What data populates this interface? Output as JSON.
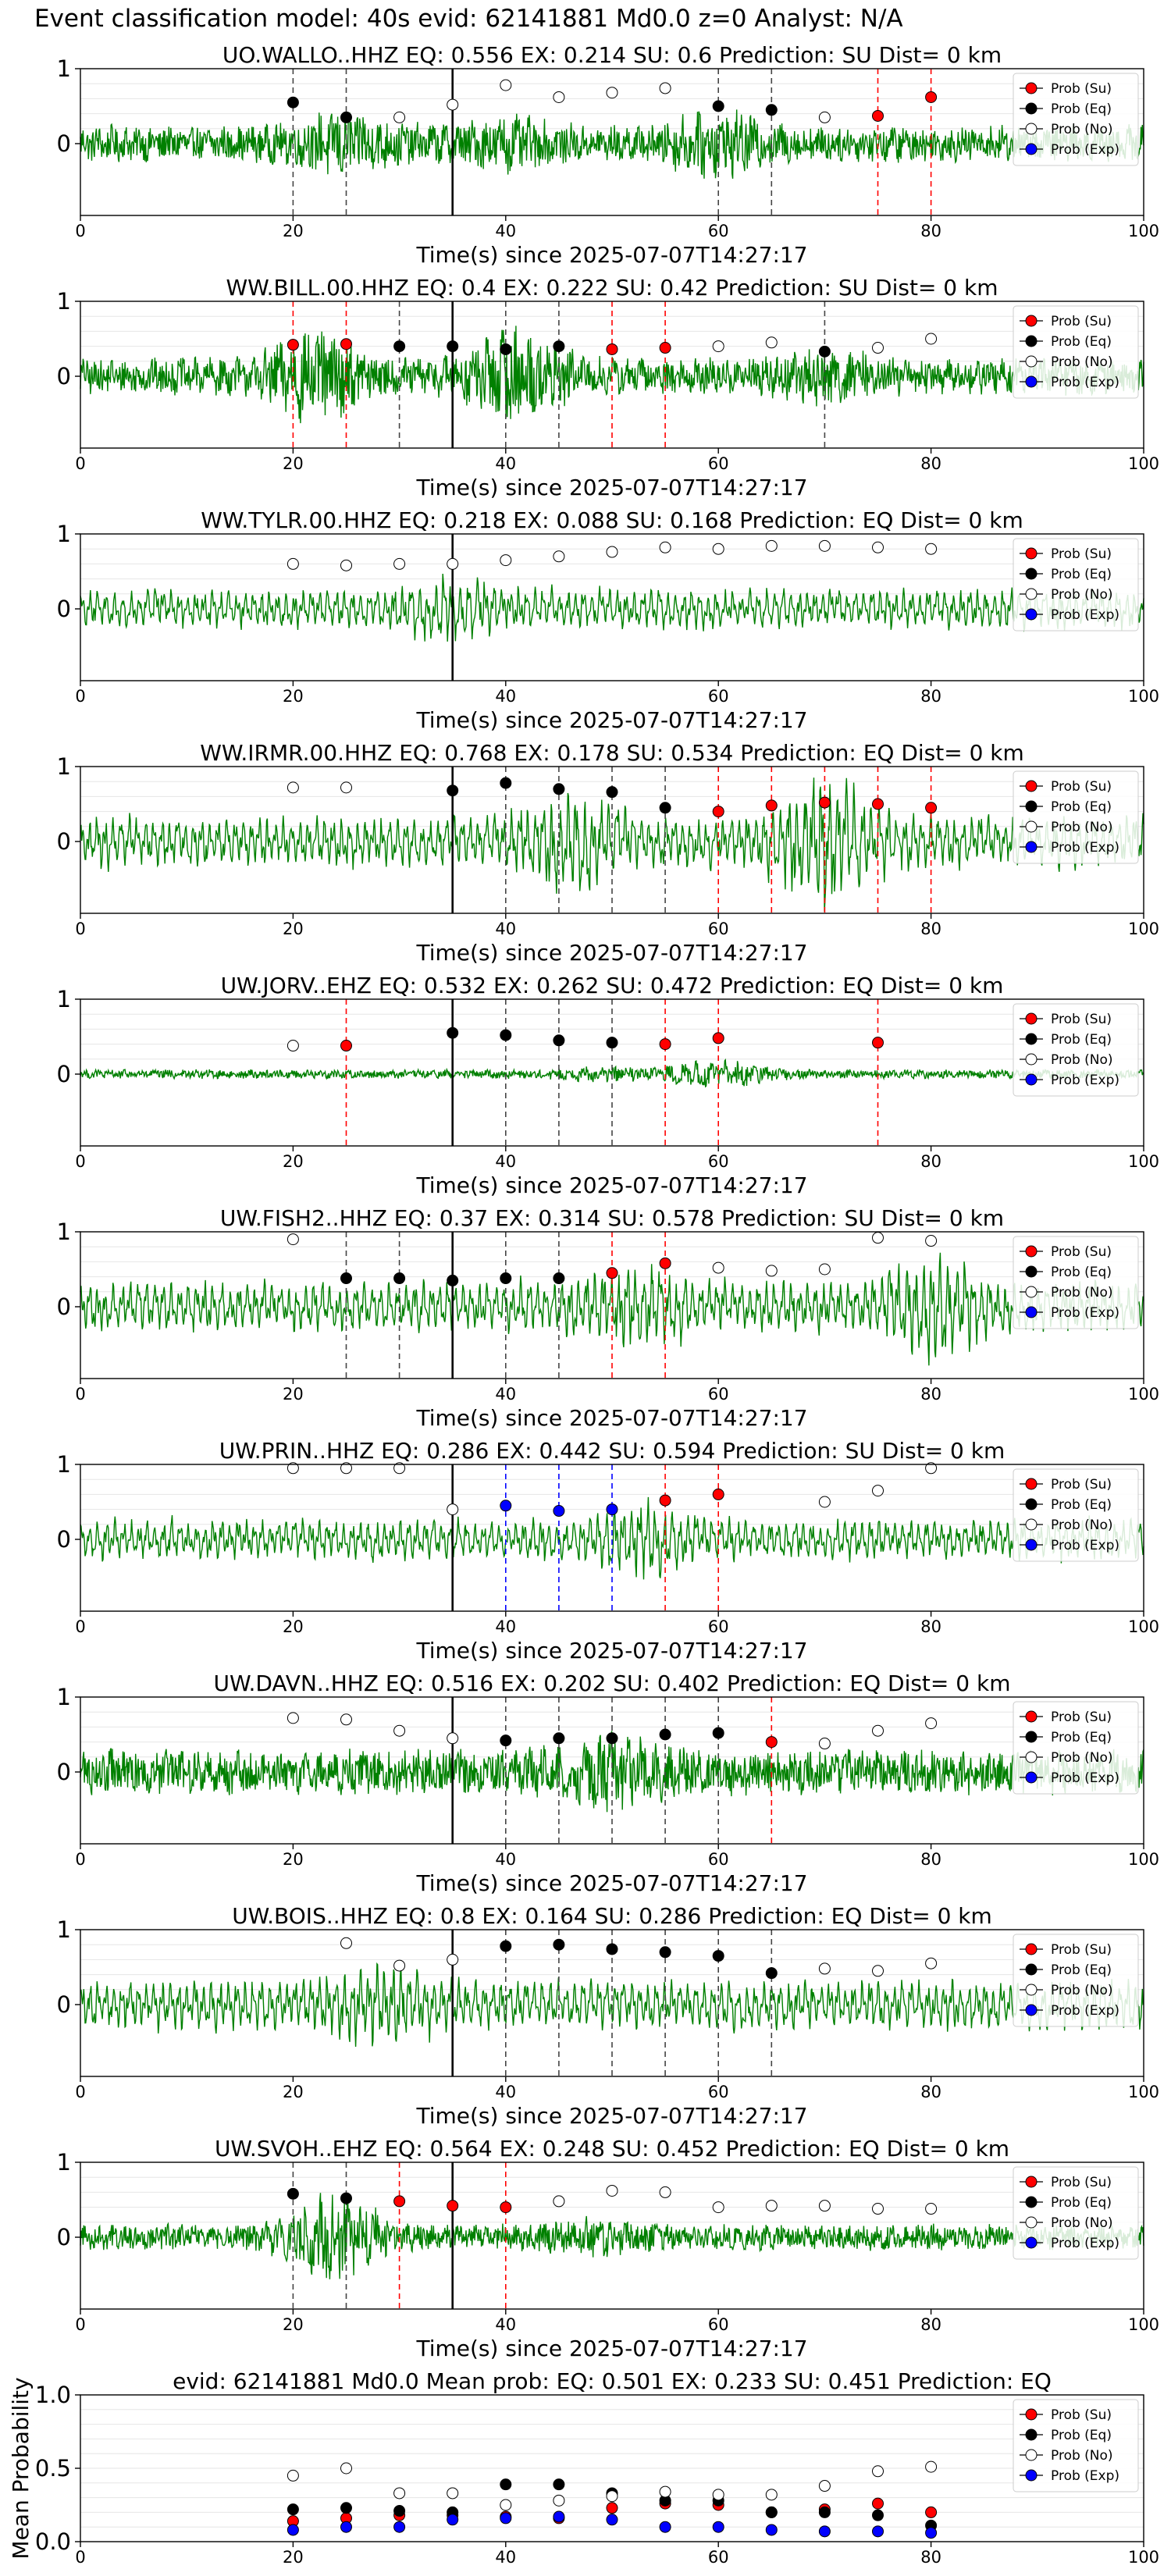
{
  "main_title": "Event classification model: 40s evid: 62141881 Md0.0 z=0 Analyst: N/A",
  "legend_labels": [
    "Prob (Su)",
    "Prob (Eq)",
    "Prob (No)",
    "Prob (Exp)"
  ],
  "colors": {
    "su": "#ff0000",
    "eq": "#000000",
    "no": "#ffffff",
    "exp": "#0000ff",
    "waveform": "#008000",
    "arrival_line": "#000000"
  },
  "chart_data": [
    {
      "type": "line",
      "title": "UO.WALLO..HHZ   EQ: 0.556  EX: 0.214  SU: 0.6   Prediction: SU    Dist= 0 km",
      "xlabel": "Time(s) since 2025-07-07T14:27:17",
      "xlim": [
        0,
        100
      ],
      "xticks": [
        0,
        20,
        40,
        60,
        80,
        100
      ],
      "yticks": [
        0,
        1
      ],
      "arrival_time": 35,
      "waveform": {
        "style": "broadband",
        "amplitude": "mixed"
      },
      "x": [
        20,
        25,
        30,
        35,
        40,
        45,
        50,
        55,
        60,
        65,
        70,
        75,
        80
      ],
      "probs": [
        0.55,
        0.35,
        0.35,
        0.52,
        0.78,
        0.62,
        0.68,
        0.74,
        0.5,
        0.45,
        0.35,
        0.37,
        0.62
      ],
      "classes": [
        "eq",
        "eq",
        "no",
        "no",
        "no",
        "no",
        "no",
        "no",
        "eq",
        "eq",
        "no",
        "su",
        "su"
      ]
    },
    {
      "type": "line",
      "title": "WW.BILL.00.HHZ   EQ: 0.4  EX: 0.222  SU: 0.42   Prediction: SU    Dist= 0 km",
      "xlabel": "Time(s) since 2025-07-07T14:27:17",
      "xlim": [
        0,
        100
      ],
      "xticks": [
        0,
        20,
        40,
        60,
        80,
        100
      ],
      "yticks": [
        0,
        1
      ],
      "arrival_time": 35,
      "waveform": {
        "style": "broadband",
        "amplitude": "mixed"
      },
      "x": [
        20,
        25,
        30,
        35,
        40,
        45,
        50,
        55,
        60,
        65,
        70,
        75,
        80
      ],
      "probs": [
        0.42,
        0.43,
        0.4,
        0.4,
        0.36,
        0.4,
        0.36,
        0.38,
        0.4,
        0.45,
        0.33,
        0.38,
        0.5
      ],
      "classes": [
        "su",
        "su",
        "eq",
        "eq",
        "eq",
        "eq",
        "su",
        "su",
        "no",
        "no",
        "eq",
        "no",
        "no"
      ]
    },
    {
      "type": "line",
      "title": "WW.TYLR.00.HHZ   EQ: 0.218  EX: 0.088  SU: 0.168   Prediction: EQ    Dist= 0 km",
      "xlabel": "Time(s) since 2025-07-07T14:27:17",
      "xlim": [
        0,
        100
      ],
      "xticks": [
        0,
        20,
        40,
        60,
        80,
        100
      ],
      "yticks": [
        0,
        1
      ],
      "arrival_time": 35,
      "waveform": {
        "style": "smooth",
        "amplitude": "medium"
      },
      "x": [
        20,
        25,
        30,
        35,
        40,
        45,
        50,
        55,
        60,
        65,
        70,
        75,
        80
      ],
      "probs": [
        0.6,
        0.58,
        0.6,
        0.6,
        0.65,
        0.7,
        0.76,
        0.82,
        0.8,
        0.84,
        0.84,
        0.82,
        0.8
      ],
      "classes": [
        "no",
        "no",
        "no",
        "no",
        "no",
        "no",
        "no",
        "no",
        "no",
        "no",
        "no",
        "no",
        "no"
      ]
    },
    {
      "type": "line",
      "title": "WW.IRMR.00.HHZ   EQ: 0.768  EX: 0.178  SU: 0.534   Prediction: EQ    Dist= 0 km",
      "xlabel": "Time(s) since 2025-07-07T14:27:17",
      "xlim": [
        0,
        100
      ],
      "xticks": [
        0,
        20,
        40,
        60,
        80,
        100
      ],
      "yticks": [
        0,
        1
      ],
      "arrival_time": 35,
      "waveform": {
        "style": "smooth",
        "amplitude": "high"
      },
      "x": [
        20,
        25,
        35,
        40,
        45,
        50,
        55,
        60,
        65,
        70,
        75,
        80
      ],
      "probs": [
        0.72,
        0.72,
        0.68,
        0.78,
        0.7,
        0.66,
        0.45,
        0.4,
        0.48,
        0.52,
        0.5,
        0.45
      ],
      "classes": [
        "no",
        "no",
        "eq",
        "eq",
        "eq",
        "eq",
        "eq",
        "su",
        "su",
        "su",
        "su",
        "su"
      ]
    },
    {
      "type": "line",
      "title": "UW.JORV..EHZ   EQ: 0.532  EX: 0.262  SU: 0.472   Prediction: EQ    Dist= 0 km",
      "xlabel": "Time(s) since 2025-07-07T14:27:17",
      "xlim": [
        0,
        100
      ],
      "xticks": [
        0,
        20,
        40,
        60,
        80,
        100
      ],
      "yticks": [
        0,
        1
      ],
      "arrival_time": 35,
      "waveform": {
        "style": "quiet-burst",
        "amplitude": "low"
      },
      "x": [
        20,
        25,
        35,
        40,
        45,
        50,
        55,
        60,
        75
      ],
      "probs": [
        0.38,
        0.38,
        0.55,
        0.52,
        0.45,
        0.42,
        0.4,
        0.48,
        0.42
      ],
      "classes": [
        "no",
        "su",
        "eq",
        "eq",
        "eq",
        "eq",
        "su",
        "su",
        "su"
      ]
    },
    {
      "type": "line",
      "title": "UW.FISH2..HHZ   EQ: 0.37  EX: 0.314  SU: 0.578   Prediction: SU    Dist= 0 km",
      "xlabel": "Time(s) since 2025-07-07T14:27:17",
      "xlim": [
        0,
        100
      ],
      "xticks": [
        0,
        20,
        40,
        60,
        80,
        100
      ],
      "yticks": [
        0,
        1
      ],
      "arrival_time": 35,
      "waveform": {
        "style": "smooth",
        "amplitude": "high"
      },
      "x": [
        20,
        25,
        30,
        35,
        40,
        45,
        50,
        55,
        60,
        65,
        70,
        75,
        80
      ],
      "probs": [
        0.9,
        0.38,
        0.38,
        0.35,
        0.38,
        0.38,
        0.45,
        0.58,
        0.52,
        0.48,
        0.5,
        0.92,
        0.88
      ],
      "classes": [
        "no",
        "eq",
        "eq",
        "eq",
        "eq",
        "eq",
        "su",
        "su",
        "no",
        "no",
        "no",
        "no",
        "no"
      ]
    },
    {
      "type": "line",
      "title": "UW.PRIN..HHZ   EQ: 0.286  EX: 0.442  SU: 0.594   Prediction: SU    Dist= 0 km",
      "xlabel": "Time(s) since 2025-07-07T14:27:17",
      "xlim": [
        0,
        100
      ],
      "xticks": [
        0,
        20,
        40,
        60,
        80,
        100
      ],
      "yticks": [
        0,
        1
      ],
      "arrival_time": 35,
      "waveform": {
        "style": "smooth",
        "amplitude": "medium"
      },
      "x": [
        20,
        25,
        30,
        35,
        40,
        45,
        50,
        55,
        60,
        70,
        75,
        80
      ],
      "probs": [
        0.95,
        0.95,
        0.95,
        0.4,
        0.45,
        0.38,
        0.4,
        0.52,
        0.6,
        0.5,
        0.65,
        0.95
      ],
      "classes": [
        "no",
        "no",
        "no",
        "no",
        "exp",
        "exp",
        "exp",
        "su",
        "su",
        "no",
        "no",
        "no"
      ]
    },
    {
      "type": "line",
      "title": "UW.DAVN..HHZ   EQ: 0.516  EX: 0.202  SU: 0.402   Prediction: EQ    Dist= 0 km",
      "xlabel": "Time(s) since 2025-07-07T14:27:17",
      "xlim": [
        0,
        100
      ],
      "xticks": [
        0,
        20,
        40,
        60,
        80,
        100
      ],
      "yticks": [
        0,
        1
      ],
      "arrival_time": 35,
      "waveform": {
        "style": "broadband",
        "amplitude": "high"
      },
      "x": [
        20,
        25,
        30,
        35,
        40,
        45,
        50,
        55,
        60,
        65,
        70,
        75,
        80
      ],
      "probs": [
        0.72,
        0.7,
        0.55,
        0.45,
        0.42,
        0.45,
        0.45,
        0.5,
        0.52,
        0.4,
        0.38,
        0.55,
        0.65
      ],
      "classes": [
        "no",
        "no",
        "no",
        "no",
        "eq",
        "eq",
        "eq",
        "eq",
        "eq",
        "su",
        "no",
        "no",
        "no"
      ]
    },
    {
      "type": "line",
      "title": "UW.BOIS..HHZ   EQ: 0.8  EX: 0.164  SU: 0.286   Prediction: EQ    Dist= 0 km",
      "xlabel": "Time(s) since 2025-07-07T14:27:17",
      "xlim": [
        0,
        100
      ],
      "xticks": [
        0,
        20,
        40,
        60,
        80,
        100
      ],
      "yticks": [
        0,
        1
      ],
      "arrival_time": 35,
      "waveform": {
        "style": "smooth",
        "amplitude": "high"
      },
      "x": [
        25,
        30,
        35,
        40,
        45,
        50,
        55,
        60,
        65,
        70,
        75,
        80
      ],
      "probs": [
        0.82,
        0.52,
        0.6,
        0.78,
        0.8,
        0.74,
        0.7,
        0.65,
        0.42,
        0.48,
        0.45,
        0.55
      ],
      "classes": [
        "no",
        "no",
        "no",
        "eq",
        "eq",
        "eq",
        "eq",
        "eq",
        "eq",
        "no",
        "no",
        "no"
      ]
    },
    {
      "type": "line",
      "title": "UW.SVOH..EHZ   EQ: 0.564  EX: 0.248  SU: 0.452   Prediction: EQ    Dist= 0 km",
      "xlabel": "Time(s) since 2025-07-07T14:27:17",
      "xlim": [
        0,
        100
      ],
      "xticks": [
        0,
        20,
        40,
        60,
        80,
        100
      ],
      "yticks": [
        0,
        1
      ],
      "arrival_time": 35,
      "waveform": {
        "style": "broadband",
        "amplitude": "low"
      },
      "x": [
        20,
        25,
        30,
        35,
        40,
        45,
        50,
        55,
        60,
        65,
        70,
        75,
        80
      ],
      "probs": [
        0.58,
        0.52,
        0.48,
        0.42,
        0.4,
        0.48,
        0.62,
        0.6,
        0.4,
        0.42,
        0.42,
        0.38,
        0.38
      ],
      "classes": [
        "eq",
        "eq",
        "su",
        "su",
        "su",
        "no",
        "no",
        "no",
        "no",
        "no",
        "no",
        "no",
        "no"
      ]
    },
    {
      "type": "scatter",
      "title": "evid: 62141881  Md0.0   Mean prob:   EQ: 0.501  EX: 0.233  SU: 0.451   Prediction: EQ",
      "ylabel": "Mean Probability",
      "xlim": [
        0,
        100
      ],
      "ylim": [
        0,
        1
      ],
      "xticks": [
        0,
        20,
        40,
        60,
        80,
        100
      ],
      "yticks": [
        0.0,
        0.5,
        1.0
      ],
      "x": [
        20,
        25,
        30,
        35,
        40,
        45,
        50,
        55,
        60,
        65,
        70,
        75,
        80
      ],
      "series": [
        {
          "name": "Prob (Su)",
          "cls": "su",
          "values": [
            0.14,
            0.16,
            0.18,
            0.18,
            0.17,
            0.16,
            0.23,
            0.26,
            0.25,
            0.2,
            0.22,
            0.26,
            0.2
          ]
        },
        {
          "name": "Prob (Eq)",
          "cls": "eq",
          "values": [
            0.22,
            0.23,
            0.21,
            0.2,
            0.39,
            0.39,
            0.33,
            0.28,
            0.28,
            0.2,
            0.2,
            0.18,
            0.11
          ]
        },
        {
          "name": "Prob (No)",
          "cls": "no",
          "values": [
            0.45,
            0.5,
            0.33,
            0.33,
            0.25,
            0.28,
            0.31,
            0.34,
            0.32,
            0.32,
            0.38,
            0.48,
            0.51
          ]
        },
        {
          "name": "Prob (Exp)",
          "cls": "exp",
          "values": [
            0.08,
            0.1,
            0.1,
            0.15,
            0.16,
            0.17,
            0.15,
            0.1,
            0.1,
            0.08,
            0.07,
            0.07,
            0.06
          ]
        }
      ]
    }
  ]
}
